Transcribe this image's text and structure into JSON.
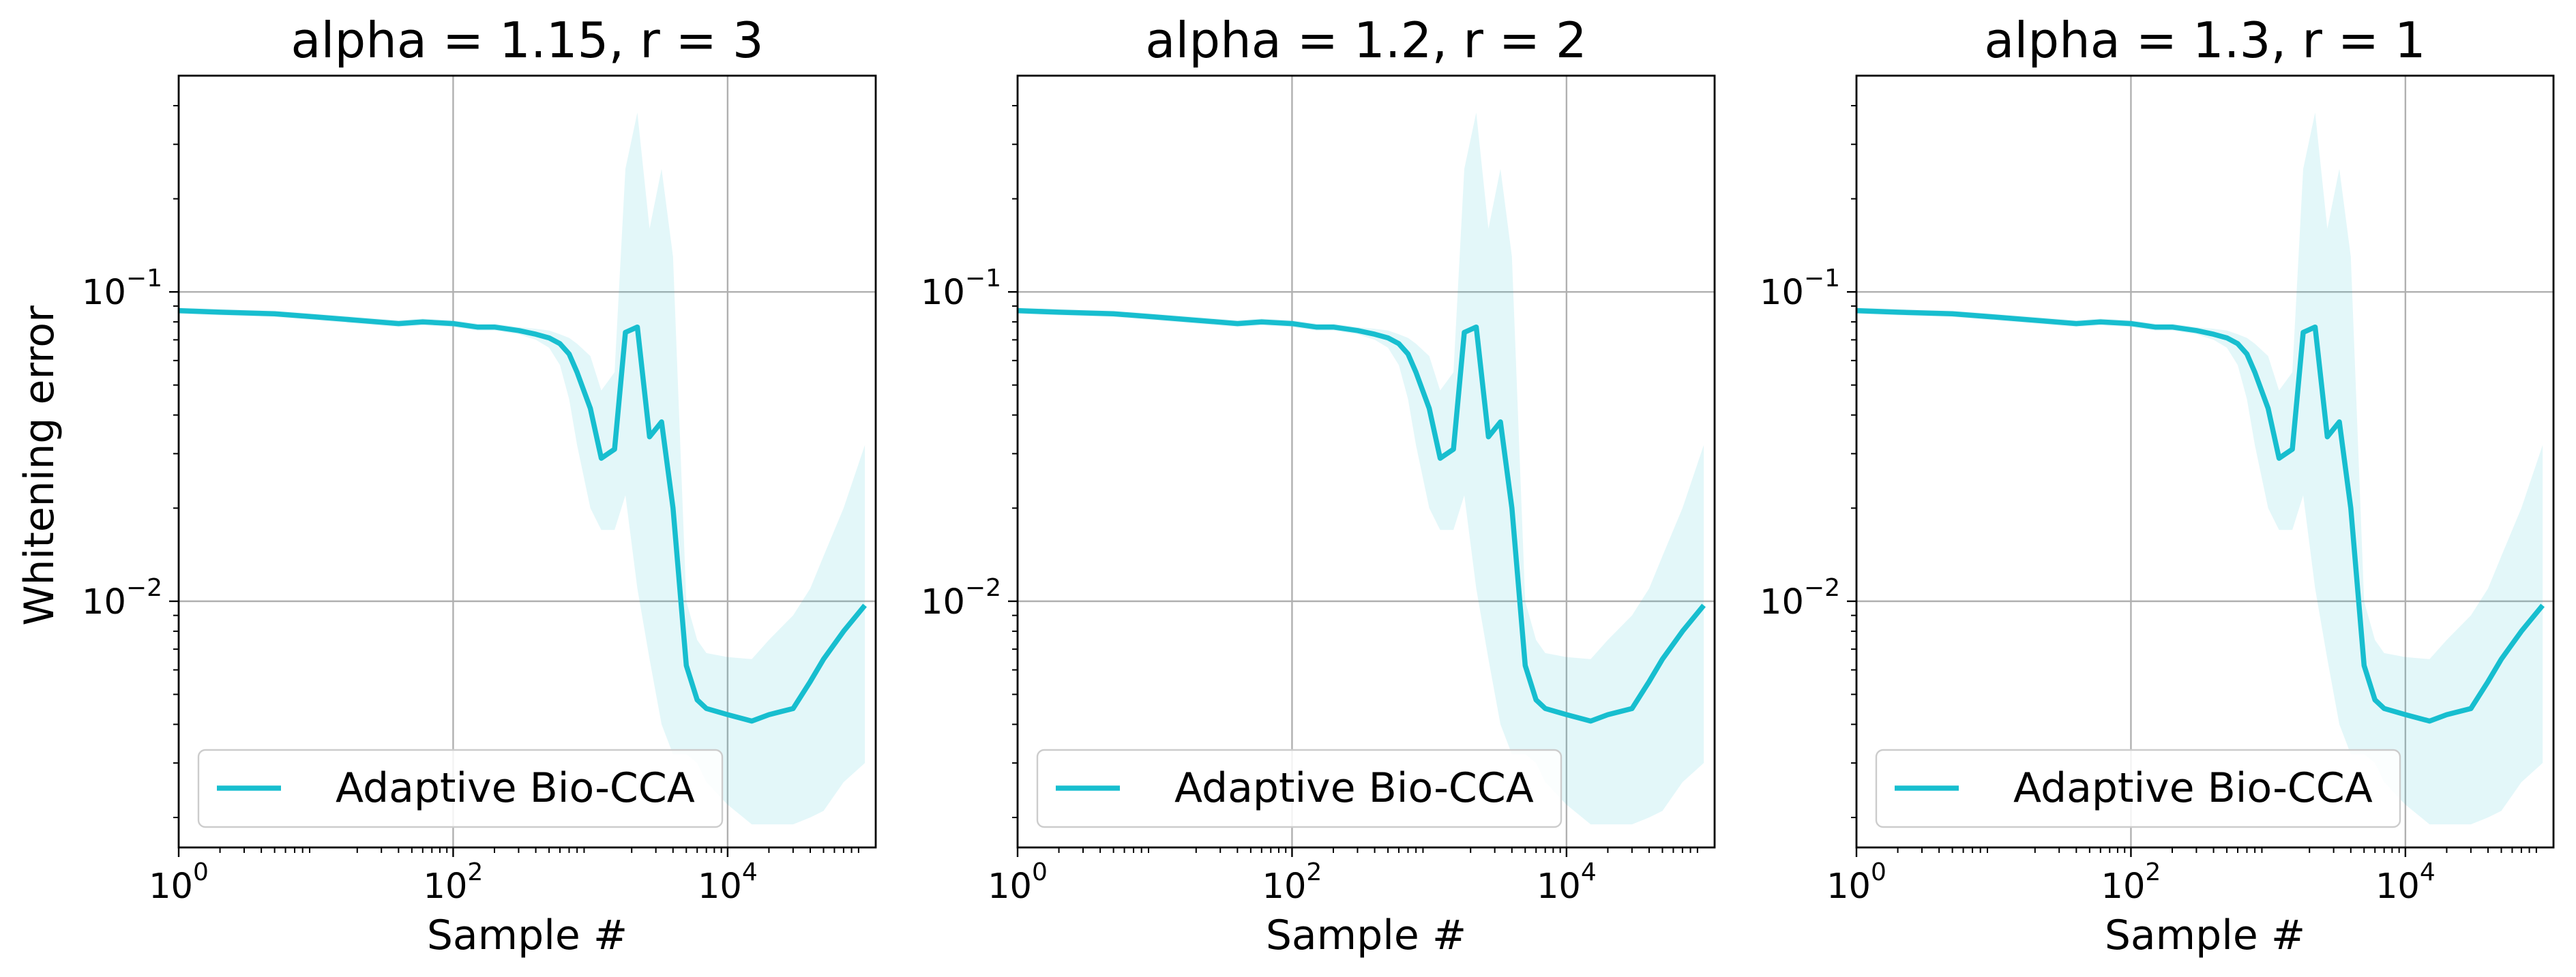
{
  "figure": {
    "ylabel": "Whitening error"
  },
  "chart_data": [
    {
      "type": "line",
      "title": "alpha = 1.15, r = 3",
      "xlabel": "Sample #",
      "ylabel": "Whitening error",
      "xscale": "log",
      "yscale": "log",
      "xlim": [
        1,
        120000
      ],
      "ylim": [
        0.0016,
        0.5
      ],
      "xticks": [
        {
          "base": "10",
          "exp": "0"
        },
        {
          "base": "10",
          "exp": "2"
        },
        {
          "base": "10",
          "exp": "4"
        }
      ],
      "yticks": [
        {
          "base": "10",
          "exp": "−2"
        },
        {
          "base": "10",
          "exp": "−1"
        }
      ],
      "grid": true,
      "legend": {
        "position": "lower-left",
        "entries": [
          "Adaptive Bio-CCA"
        ]
      },
      "series": [
        {
          "name": "Adaptive Bio-CCA",
          "color": "#17becf",
          "x": [
            1,
            2,
            5,
            10,
            20,
            40,
            60,
            100,
            150,
            200,
            300,
            400,
            500,
            600,
            700,
            800,
            1000,
            1200,
            1500,
            1800,
            2200,
            2700,
            3300,
            4000,
            5000,
            6000,
            7000,
            10000,
            15000,
            20000,
            30000,
            40000,
            50000,
            70000,
            100000
          ],
          "y": [
            0.087,
            0.086,
            0.085,
            0.083,
            0.081,
            0.079,
            0.08,
            0.079,
            0.077,
            0.077,
            0.075,
            0.073,
            0.071,
            0.068,
            0.063,
            0.055,
            0.042,
            0.029,
            0.031,
            0.074,
            0.077,
            0.034,
            0.038,
            0.02,
            0.0062,
            0.0048,
            0.0045,
            0.0043,
            0.0041,
            0.0043,
            0.0045,
            0.0055,
            0.0065,
            0.008,
            0.0097
          ],
          "band_low": [
            0.085,
            0.084,
            0.083,
            0.081,
            0.079,
            0.077,
            0.078,
            0.077,
            0.075,
            0.075,
            0.073,
            0.07,
            0.066,
            0.058,
            0.045,
            0.032,
            0.02,
            0.017,
            0.017,
            0.022,
            0.011,
            0.0065,
            0.004,
            0.0032,
            0.0032,
            0.003,
            0.0026,
            0.0022,
            0.0019,
            0.0019,
            0.0019,
            0.002,
            0.0021,
            0.0026,
            0.003
          ],
          "band_high": [
            0.089,
            0.088,
            0.087,
            0.085,
            0.083,
            0.081,
            0.082,
            0.081,
            0.079,
            0.079,
            0.077,
            0.076,
            0.075,
            0.073,
            0.071,
            0.068,
            0.062,
            0.048,
            0.055,
            0.25,
            0.38,
            0.16,
            0.25,
            0.13,
            0.01,
            0.0075,
            0.0068,
            0.0066,
            0.0065,
            0.0075,
            0.009,
            0.011,
            0.014,
            0.02,
            0.032
          ]
        }
      ]
    },
    {
      "type": "line",
      "title": "alpha = 1.2, r = 2",
      "xlabel": "Sample #",
      "ylabel": "",
      "xscale": "log",
      "yscale": "log",
      "xlim": [
        1,
        120000
      ],
      "ylim": [
        0.0016,
        0.5
      ],
      "xticks": [
        {
          "base": "10",
          "exp": "0"
        },
        {
          "base": "10",
          "exp": "2"
        },
        {
          "base": "10",
          "exp": "4"
        }
      ],
      "yticks": [
        {
          "base": "10",
          "exp": "−2"
        },
        {
          "base": "10",
          "exp": "−1"
        }
      ],
      "grid": true,
      "legend": {
        "position": "lower-left",
        "entries": [
          "Adaptive Bio-CCA"
        ]
      },
      "series": [
        {
          "name": "Adaptive Bio-CCA",
          "color": "#17becf",
          "x": [
            1,
            2,
            5,
            10,
            20,
            40,
            60,
            100,
            150,
            200,
            300,
            400,
            500,
            600,
            700,
            800,
            1000,
            1200,
            1500,
            1800,
            2200,
            2700,
            3300,
            4000,
            5000,
            6000,
            7000,
            10000,
            15000,
            20000,
            30000,
            40000,
            50000,
            70000,
            100000
          ],
          "y": [
            0.087,
            0.086,
            0.085,
            0.083,
            0.081,
            0.079,
            0.08,
            0.079,
            0.077,
            0.077,
            0.075,
            0.073,
            0.071,
            0.068,
            0.063,
            0.055,
            0.042,
            0.029,
            0.031,
            0.074,
            0.077,
            0.034,
            0.038,
            0.02,
            0.0062,
            0.0048,
            0.0045,
            0.0043,
            0.0041,
            0.0043,
            0.0045,
            0.0055,
            0.0065,
            0.008,
            0.0097
          ],
          "band_low": [
            0.085,
            0.084,
            0.083,
            0.081,
            0.079,
            0.077,
            0.078,
            0.077,
            0.075,
            0.075,
            0.073,
            0.07,
            0.066,
            0.058,
            0.045,
            0.032,
            0.02,
            0.017,
            0.017,
            0.022,
            0.011,
            0.0065,
            0.004,
            0.0032,
            0.0032,
            0.003,
            0.0026,
            0.0022,
            0.0019,
            0.0019,
            0.0019,
            0.002,
            0.0021,
            0.0026,
            0.003
          ],
          "band_high": [
            0.089,
            0.088,
            0.087,
            0.085,
            0.083,
            0.081,
            0.082,
            0.081,
            0.079,
            0.079,
            0.077,
            0.076,
            0.075,
            0.073,
            0.071,
            0.068,
            0.062,
            0.048,
            0.055,
            0.25,
            0.38,
            0.16,
            0.25,
            0.13,
            0.01,
            0.0075,
            0.0068,
            0.0066,
            0.0065,
            0.0075,
            0.009,
            0.011,
            0.014,
            0.02,
            0.032
          ]
        }
      ]
    },
    {
      "type": "line",
      "title": "alpha = 1.3, r = 1",
      "xlabel": "Sample #",
      "ylabel": "",
      "xscale": "log",
      "yscale": "log",
      "xlim": [
        1,
        120000
      ],
      "ylim": [
        0.0016,
        0.5
      ],
      "xticks": [
        {
          "base": "10",
          "exp": "0"
        },
        {
          "base": "10",
          "exp": "2"
        },
        {
          "base": "10",
          "exp": "4"
        }
      ],
      "yticks": [
        {
          "base": "10",
          "exp": "−2"
        },
        {
          "base": "10",
          "exp": "−1"
        }
      ],
      "grid": true,
      "legend": {
        "position": "lower-left",
        "entries": [
          "Adaptive Bio-CCA"
        ]
      },
      "series": [
        {
          "name": "Adaptive Bio-CCA",
          "color": "#17becf",
          "x": [
            1,
            2,
            5,
            10,
            20,
            40,
            60,
            100,
            150,
            200,
            300,
            400,
            500,
            600,
            700,
            800,
            1000,
            1200,
            1500,
            1800,
            2200,
            2700,
            3300,
            4000,
            5000,
            6000,
            7000,
            10000,
            15000,
            20000,
            30000,
            40000,
            50000,
            70000,
            100000
          ],
          "y": [
            0.087,
            0.086,
            0.085,
            0.083,
            0.081,
            0.079,
            0.08,
            0.079,
            0.077,
            0.077,
            0.075,
            0.073,
            0.071,
            0.068,
            0.063,
            0.055,
            0.042,
            0.029,
            0.031,
            0.074,
            0.077,
            0.034,
            0.038,
            0.02,
            0.0062,
            0.0048,
            0.0045,
            0.0043,
            0.0041,
            0.0043,
            0.0045,
            0.0055,
            0.0065,
            0.008,
            0.0097
          ],
          "band_low": [
            0.085,
            0.084,
            0.083,
            0.081,
            0.079,
            0.077,
            0.078,
            0.077,
            0.075,
            0.075,
            0.073,
            0.07,
            0.066,
            0.058,
            0.045,
            0.032,
            0.02,
            0.017,
            0.017,
            0.022,
            0.011,
            0.0065,
            0.004,
            0.0032,
            0.0032,
            0.003,
            0.0026,
            0.0022,
            0.0019,
            0.0019,
            0.0019,
            0.002,
            0.0021,
            0.0026,
            0.003
          ],
          "band_high": [
            0.089,
            0.088,
            0.087,
            0.085,
            0.083,
            0.081,
            0.082,
            0.081,
            0.079,
            0.079,
            0.077,
            0.076,
            0.075,
            0.073,
            0.071,
            0.068,
            0.062,
            0.048,
            0.055,
            0.25,
            0.38,
            0.16,
            0.25,
            0.13,
            0.01,
            0.0075,
            0.0068,
            0.0066,
            0.0065,
            0.0075,
            0.009,
            0.011,
            0.014,
            0.02,
            0.032
          ]
        }
      ]
    }
  ]
}
